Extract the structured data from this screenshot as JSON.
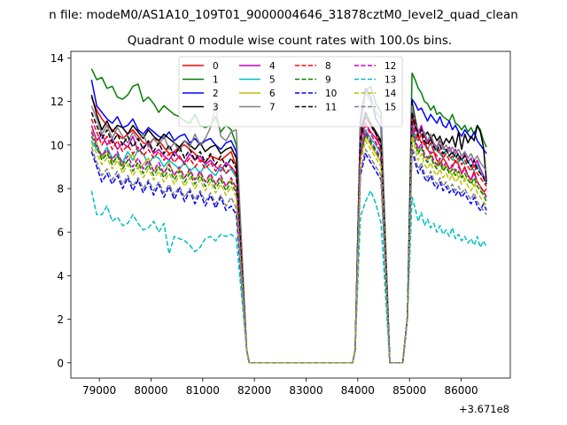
{
  "chart_data": {
    "type": "line",
    "suptitle": "n file: modeM0/AS1A10_109T01_9000004646_31878cztM0_level2_quad_clean",
    "title": "Quadrant 0 module wise count rates with 100.0s bins.",
    "xlabel": "",
    "ylabel": "",
    "offset_text": "+3.671e8",
    "xlim": [
      78450,
      86950
    ],
    "ylim": [
      -0.7,
      14.3
    ],
    "xticks": [
      79000,
      80000,
      81000,
      82000,
      83000,
      84000,
      85000,
      86000
    ],
    "yticks": [
      0,
      2,
      4,
      6,
      8,
      10,
      12,
      14
    ],
    "grid": false,
    "legend": {
      "placement": "upper-center",
      "columns": 4
    },
    "gap_segments": [
      {
        "x": [
          81800,
          81850,
          81900,
          83900,
          83950,
          84000
        ],
        "y": "drop"
      },
      {
        "x": [
          84500,
          84550,
          84600,
          84850,
          84900,
          84950
        ],
        "y": "drop"
      }
    ],
    "series": [
      {
        "name": "0",
        "color": "#ff0000",
        "dash": "solid",
        "seg1": [
          12.2,
          11.6,
          11.2,
          10.9,
          10.7,
          10.5,
          10.3,
          10.5,
          10.7,
          10.4,
          10.1,
          10.0,
          10.3,
          10.2,
          9.9,
          9.6,
          9.7,
          9.9,
          10.0,
          9.8,
          9.6,
          9.3,
          9.2,
          9.5,
          9.4,
          9.3,
          9.5,
          9.7,
          9.0
        ],
        "seg2": [
          10.4,
          11.3,
          10.9,
          10.5,
          9.8
        ],
        "seg3": [
          11.7,
          11.0,
          10.4,
          10.1,
          10.2,
          9.8,
          9.6,
          9.7,
          9.3,
          9.1,
          9.4,
          9.2,
          8.9,
          9.0,
          9.3,
          9.1,
          8.7,
          9.0,
          8.6,
          8.4,
          8.8,
          8.3,
          8.1,
          7.8,
          8.0
        ]
      },
      {
        "name": "1",
        "color": "#008000",
        "dash": "solid",
        "seg1": [
          13.5,
          13.0,
          13.1,
          12.6,
          12.7,
          12.2,
          12.1,
          12.3,
          12.7,
          12.8,
          12.0,
          12.2,
          11.9,
          11.5,
          11.8,
          11.6,
          11.4,
          11.3,
          11.1,
          11.0,
          11.4,
          10.9,
          10.8,
          10.9,
          11.3,
          10.6,
          10.9,
          10.7,
          10.0
        ],
        "seg2": [
          11.2,
          12.5,
          12.7,
          11.9,
          11.5
        ],
        "seg3": [
          13.3,
          13.0,
          12.6,
          12.4,
          12.0,
          11.9,
          11.6,
          11.8,
          11.4,
          11.5,
          11.3,
          11.2,
          11.1,
          11.4,
          11.0,
          10.9,
          10.7,
          10.9,
          10.6,
          10.8,
          10.5,
          10.9,
          10.7,
          10.2,
          9.9
        ]
      },
      {
        "name": "2",
        "color": "#0000ff",
        "dash": "solid",
        "seg1": [
          13.0,
          11.8,
          11.5,
          11.2,
          11.0,
          11.3,
          10.8,
          10.9,
          11.2,
          10.7,
          10.5,
          10.8,
          10.6,
          10.4,
          10.3,
          10.6,
          10.2,
          10.4,
          10.5,
          10.1,
          10.3,
          10.0,
          10.2,
          10.3,
          10.0,
          9.8,
          10.1,
          10.2,
          9.7
        ],
        "seg2": [
          11.1,
          12.6,
          12.2,
          11.2,
          10.8
        ],
        "seg3": [
          12.1,
          11.9,
          11.6,
          11.7,
          11.4,
          11.1,
          11.4,
          11.2,
          11.0,
          11.3,
          10.9,
          10.8,
          11.1,
          10.7,
          10.9,
          10.6,
          10.4,
          10.7,
          10.5,
          10.3,
          10.6,
          10.2,
          10.0,
          9.8,
          9.6
        ]
      },
      {
        "name": "3",
        "color": "#000000",
        "dash": "solid",
        "seg1": [
          12.3,
          11.4,
          10.7,
          11.1,
          10.6,
          10.9,
          10.8,
          10.5,
          10.9,
          10.6,
          10.3,
          10.7,
          10.4,
          10.2,
          10.5,
          10.3,
          10.1,
          9.9,
          10.2,
          10.0,
          9.8,
          10.1,
          9.7,
          9.9,
          10.0,
          9.6,
          9.8,
          9.9,
          9.4
        ],
        "seg2": [
          10.6,
          11.5,
          11.0,
          10.6,
          10.2
        ],
        "seg3": [
          12.0,
          11.2,
          10.6,
          10.8,
          10.4,
          10.6,
          10.3,
          10.5,
          10.2,
          10.4,
          10.0,
          10.3,
          10.1,
          10.4,
          9.9,
          10.6,
          9.8,
          10.5,
          10.1,
          10.4,
          10.2,
          10.9,
          10.6,
          9.9,
          8.3
        ]
      },
      {
        "name": "4",
        "color": "#bf00bf",
        "dash": "solid",
        "seg1": [
          10.9,
          10.2,
          10.5,
          10.0,
          10.3,
          9.8,
          10.1,
          9.9,
          10.4,
          9.7,
          9.9,
          10.1,
          9.6,
          9.8,
          9.5,
          9.3,
          9.7,
          9.4,
          9.2,
          9.6,
          9.3,
          9.5,
          9.1,
          9.3,
          9.0,
          8.8,
          9.2,
          9.0,
          8.7
        ],
        "seg2": [
          10.2,
          11.0,
          10.6,
          10.3,
          9.9
        ],
        "seg3": [
          11.4,
          10.8,
          10.5,
          10.9,
          10.4,
          10.1,
          10.3,
          10.0,
          9.8,
          10.2,
          9.9,
          9.7,
          9.9,
          9.6,
          9.8,
          9.5,
          9.3,
          9.6,
          9.2,
          9.4,
          9.0,
          9.3,
          8.9,
          8.6,
          8.4
        ]
      },
      {
        "name": "5",
        "color": "#00bfbf",
        "dash": "solid",
        "seg1": [
          10.2,
          9.8,
          9.5,
          9.9,
          9.4,
          9.6,
          9.2,
          9.7,
          9.3,
          9.8,
          9.6,
          9.1,
          9.5,
          9.4,
          9.0,
          9.3,
          9.1,
          8.9,
          9.2,
          8.8,
          9.0,
          8.7,
          9.1,
          8.8,
          8.6,
          9.0,
          8.7,
          8.9,
          8.5
        ],
        "seg2": [
          9.8,
          10.7,
          10.3,
          10.0,
          9.6
        ],
        "seg3": [
          11.0,
          10.4,
          10.2,
          10.5,
          10.0,
          9.8,
          10.1,
          9.7,
          9.9,
          9.6,
          9.4,
          9.8,
          9.5,
          9.3,
          9.6,
          9.2,
          9.4,
          9.1,
          9.3,
          9.0,
          8.8,
          9.1,
          8.7,
          8.5,
          8.2
        ]
      },
      {
        "name": "6",
        "color": "#bfbf00",
        "dash": "solid",
        "seg1": [
          10.7,
          10.1,
          9.4,
          9.7,
          9.2,
          9.5,
          9.0,
          9.3,
          9.6,
          8.9,
          9.1,
          9.4,
          8.8,
          9.0,
          8.7,
          9.2,
          8.6,
          8.9,
          8.5,
          8.8,
          8.4,
          8.7,
          8.3,
          8.6,
          8.2,
          8.5,
          8.1,
          8.4,
          8.0
        ],
        "seg2": [
          9.4,
          10.4,
          10.0,
          9.6,
          9.2
        ],
        "seg3": [
          10.6,
          10.1,
          9.7,
          9.9,
          9.5,
          9.3,
          9.6,
          9.2,
          9.0,
          9.3,
          8.9,
          9.1,
          8.8,
          8.6,
          8.9,
          8.5,
          8.7,
          8.4,
          8.6,
          8.3,
          8.1,
          8.4,
          8.0,
          7.8,
          7.6
        ]
      },
      {
        "name": "7",
        "color": "#808080",
        "dash": "solid",
        "seg1": [
          11.8,
          11.2,
          10.5,
          10.9,
          10.3,
          10.8,
          10.4,
          10.1,
          10.6,
          10.2,
          10.5,
          9.9,
          10.3,
          10.0,
          10.4,
          9.8,
          10.1,
          9.7,
          10.2,
          9.9,
          10.5,
          10.0,
          10.3,
          10.8,
          11.8,
          10.4,
          10.2,
          10.6,
          10.7
        ],
        "seg2": [
          10.8,
          12.4,
          12.0,
          11.5,
          11.2
        ],
        "seg3": [
          11.8,
          11.0,
          10.7,
          10.4,
          10.6,
          10.2,
          10.5,
          10.1,
          9.9,
          10.3,
          9.8,
          10.0,
          9.7,
          9.9,
          9.6,
          9.8,
          9.5,
          9.7,
          9.4,
          9.6,
          9.3,
          9.5,
          9.2,
          9.0,
          8.8
        ]
      },
      {
        "name": "8",
        "color": "#ff0000",
        "dash": "dashed",
        "seg1": [
          11.2,
          10.6,
          10.0,
          10.4,
          9.8,
          10.2,
          9.7,
          10.0,
          9.6,
          9.9,
          9.5,
          9.8,
          9.4,
          9.7,
          9.3,
          9.6,
          9.2,
          9.5,
          9.1,
          9.4,
          9.0,
          9.3,
          8.9,
          9.2,
          8.8,
          9.1,
          8.7,
          9.0,
          8.6
        ],
        "seg2": [
          10.0,
          10.9,
          10.5,
          10.1,
          9.7
        ],
        "seg3": [
          11.2,
          10.6,
          10.2,
          10.5,
          10.0,
          9.8,
          10.1,
          9.7,
          9.5,
          9.8,
          9.4,
          9.6,
          9.3,
          9.5,
          9.2,
          9.4,
          9.1,
          9.3,
          9.0,
          8.8,
          9.1,
          8.7,
          8.5,
          8.3,
          8.1
        ]
      },
      {
        "name": "9",
        "color": "#008000",
        "dash": "dashed",
        "seg1": [
          10.4,
          9.9,
          9.3,
          9.6,
          9.1,
          9.5,
          8.9,
          9.3,
          8.8,
          9.2,
          8.7,
          9.1,
          8.6,
          9.0,
          8.5,
          8.9,
          8.4,
          8.8,
          8.3,
          8.7,
          8.2,
          8.6,
          8.1,
          8.5,
          8.0,
          8.4,
          7.9,
          8.3,
          7.8
        ],
        "seg2": [
          9.5,
          10.5,
          10.1,
          9.7,
          9.3
        ],
        "seg3": [
          10.7,
          10.1,
          9.6,
          9.9,
          9.4,
          9.2,
          9.5,
          9.1,
          8.9,
          9.2,
          8.8,
          9.0,
          8.7,
          8.9,
          8.6,
          8.8,
          8.5,
          8.7,
          8.4,
          8.2,
          8.5,
          8.1,
          7.9,
          7.7,
          7.4
        ]
      },
      {
        "name": "10",
        "color": "#0000ff",
        "dash": "dashed",
        "seg1": [
          9.7,
          9.0,
          8.3,
          8.7,
          8.2,
          8.6,
          8.0,
          8.5,
          7.9,
          8.4,
          7.8,
          8.3,
          7.7,
          8.2,
          7.6,
          8.1,
          7.5,
          8.0,
          7.4,
          7.9,
          7.3,
          7.8,
          7.2,
          7.7,
          7.1,
          7.6,
          7.0,
          7.2,
          6.8
        ],
        "seg2": [
          8.6,
          9.6,
          9.2,
          8.8,
          8.4
        ],
        "seg3": [
          9.8,
          9.2,
          8.7,
          9.0,
          8.5,
          8.3,
          8.6,
          8.2,
          8.0,
          8.3,
          7.9,
          8.1,
          7.8,
          8.0,
          7.7,
          7.9,
          7.6,
          7.8,
          7.5,
          7.3,
          7.6,
          7.2,
          7.0,
          7.3,
          7.0
        ]
      },
      {
        "name": "11",
        "color": "#000000",
        "dash": "dashed",
        "seg1": [
          11.5,
          10.9,
          10.3,
          10.7,
          10.1,
          10.5,
          10.0,
          10.4,
          9.9,
          10.3,
          9.8,
          10.2,
          9.7,
          10.1,
          9.6,
          10.0,
          9.5,
          9.9,
          9.4,
          9.8,
          9.3,
          9.7,
          9.2,
          9.6,
          9.1,
          9.5,
          9.0,
          9.4,
          8.9
        ],
        "seg2": [
          10.3,
          11.3,
          10.9,
          10.5,
          10.1
        ],
        "seg3": [
          11.5,
          10.9,
          10.4,
          10.7,
          10.2,
          10.0,
          10.3,
          9.9,
          9.7,
          10.0,
          9.6,
          9.8,
          9.5,
          9.7,
          9.4,
          9.6,
          9.3,
          9.5,
          9.2,
          9.0,
          9.3,
          8.9,
          8.7,
          8.5,
          8.2
        ]
      },
      {
        "name": "12",
        "color": "#bf00bf",
        "dash": "dashed",
        "seg1": [
          10.6,
          10.0,
          9.5,
          9.8,
          9.3,
          9.7,
          9.1,
          9.5,
          9.0,
          9.4,
          8.9,
          9.3,
          8.8,
          9.2,
          8.7,
          9.1,
          8.6,
          9.0,
          8.5,
          8.9,
          8.4,
          8.8,
          8.3,
          8.7,
          8.2,
          8.6,
          8.1,
          8.5,
          8.0
        ],
        "seg2": [
          9.6,
          10.6,
          10.2,
          9.8,
          9.4
        ],
        "seg3": [
          10.9,
          10.3,
          9.8,
          10.1,
          9.6,
          9.4,
          9.7,
          9.3,
          9.1,
          9.4,
          9.0,
          9.2,
          8.9,
          9.1,
          8.8,
          9.0,
          8.7,
          8.9,
          8.6,
          8.4,
          8.7,
          8.3,
          8.1,
          7.9,
          7.6
        ]
      },
      {
        "name": "13",
        "color": "#00bfbf",
        "dash": "dashed",
        "seg1": [
          7.9,
          6.8,
          6.8,
          7.2,
          6.5,
          6.7,
          6.3,
          6.4,
          6.8,
          6.4,
          6.1,
          6.2,
          6.5,
          6.0,
          6.4,
          5.0,
          5.8,
          5.7,
          5.6,
          5.4,
          5.1,
          5.3,
          5.7,
          5.8,
          5.6,
          5.9,
          5.8,
          5.9,
          5.7
        ],
        "seg2": [
          6.7,
          7.4,
          7.9,
          7.3,
          6.4
        ],
        "seg3": [
          7.6,
          7.1,
          6.5,
          6.9,
          6.3,
          6.6,
          6.2,
          6.4,
          6.0,
          6.3,
          5.9,
          6.1,
          5.8,
          6.2,
          5.7,
          5.9,
          5.6,
          5.8,
          5.5,
          5.7,
          5.4,
          5.8,
          5.3,
          5.6,
          5.3
        ]
      },
      {
        "name": "14",
        "color": "#bfbf00",
        "dash": "dashed",
        "seg1": [
          10.1,
          9.6,
          9.1,
          9.4,
          8.9,
          9.3,
          8.7,
          9.1,
          8.6,
          9.0,
          8.5,
          8.9,
          8.4,
          8.8,
          8.3,
          8.7,
          8.2,
          8.6,
          8.1,
          8.5,
          8.0,
          8.4,
          7.9,
          8.3,
          7.8,
          8.2,
          7.7,
          8.1,
          7.6
        ],
        "seg2": [
          9.2,
          10.2,
          9.8,
          9.4,
          9.0
        ],
        "seg3": [
          10.4,
          9.8,
          9.3,
          9.6,
          9.1,
          8.9,
          9.2,
          8.8,
          8.6,
          8.9,
          8.5,
          8.7,
          8.4,
          8.6,
          8.3,
          8.5,
          8.2,
          8.4,
          8.1,
          7.9,
          8.2,
          7.8,
          7.6,
          7.4,
          7.2
        ]
      },
      {
        "name": "15",
        "color": "#808080",
        "dash": "dashed",
        "seg1": [
          9.9,
          9.2,
          8.6,
          8.9,
          8.4,
          8.8,
          8.2,
          8.6,
          8.1,
          8.5,
          8.0,
          8.4,
          7.9,
          8.3,
          7.8,
          8.2,
          7.7,
          8.1,
          7.6,
          8.0,
          7.5,
          7.9,
          7.4,
          7.8,
          7.3,
          7.7,
          7.2,
          7.6,
          7.1
        ],
        "seg2": [
          8.8,
          9.8,
          9.4,
          9.0,
          8.6
        ],
        "seg3": [
          10.0,
          9.4,
          8.9,
          9.2,
          8.7,
          8.5,
          8.8,
          8.4,
          8.2,
          8.5,
          8.1,
          8.3,
          8.0,
          8.2,
          7.9,
          8.1,
          7.8,
          8.0,
          7.7,
          7.5,
          7.8,
          7.4,
          7.2,
          7.0,
          6.8
        ]
      }
    ]
  }
}
